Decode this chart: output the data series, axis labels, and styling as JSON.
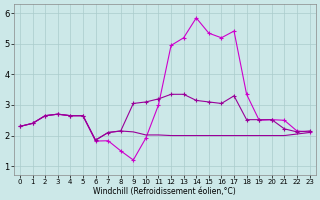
{
  "xlabel": "Windchill (Refroidissement éolien,°C)",
  "x": [
    0,
    1,
    2,
    3,
    4,
    5,
    6,
    7,
    8,
    9,
    10,
    11,
    12,
    13,
    14,
    15,
    16,
    17,
    18,
    19,
    20,
    21,
    22,
    23
  ],
  "line_peak": [
    2.3,
    2.4,
    2.65,
    2.7,
    2.65,
    2.65,
    1.82,
    1.83,
    1.5,
    1.2,
    1.92,
    3.0,
    4.95,
    5.2,
    5.85,
    5.35,
    5.2,
    5.42,
    3.35,
    2.5,
    2.52,
    2.5,
    2.15,
    2.12
  ],
  "line_flat_upper": [
    2.3,
    2.4,
    2.65,
    2.7,
    2.65,
    2.65,
    1.85,
    2.1,
    2.15,
    3.05,
    3.1,
    3.2,
    3.35,
    3.35,
    3.15,
    3.1,
    3.05,
    3.3,
    2.52,
    2.52,
    2.52,
    2.22,
    2.12,
    2.15
  ],
  "line_flat_lower": [
    2.3,
    2.4,
    2.65,
    2.7,
    2.65,
    2.65,
    1.85,
    2.1,
    2.15,
    2.12,
    2.02,
    2.02,
    2.0,
    2.0,
    2.0,
    2.0,
    2.0,
    2.0,
    2.0,
    2.0,
    2.0,
    2.0,
    2.05,
    2.1
  ],
  "color_main": "#990099",
  "color_peak": "#cc00cc",
  "bg_color": "#cce8e8",
  "grid_color": "#aacccc",
  "ylim": [
    0.7,
    6.3
  ],
  "yticks": [
    1,
    2,
    3,
    4,
    5,
    6
  ],
  "xlim": [
    -0.5,
    23.5
  ]
}
